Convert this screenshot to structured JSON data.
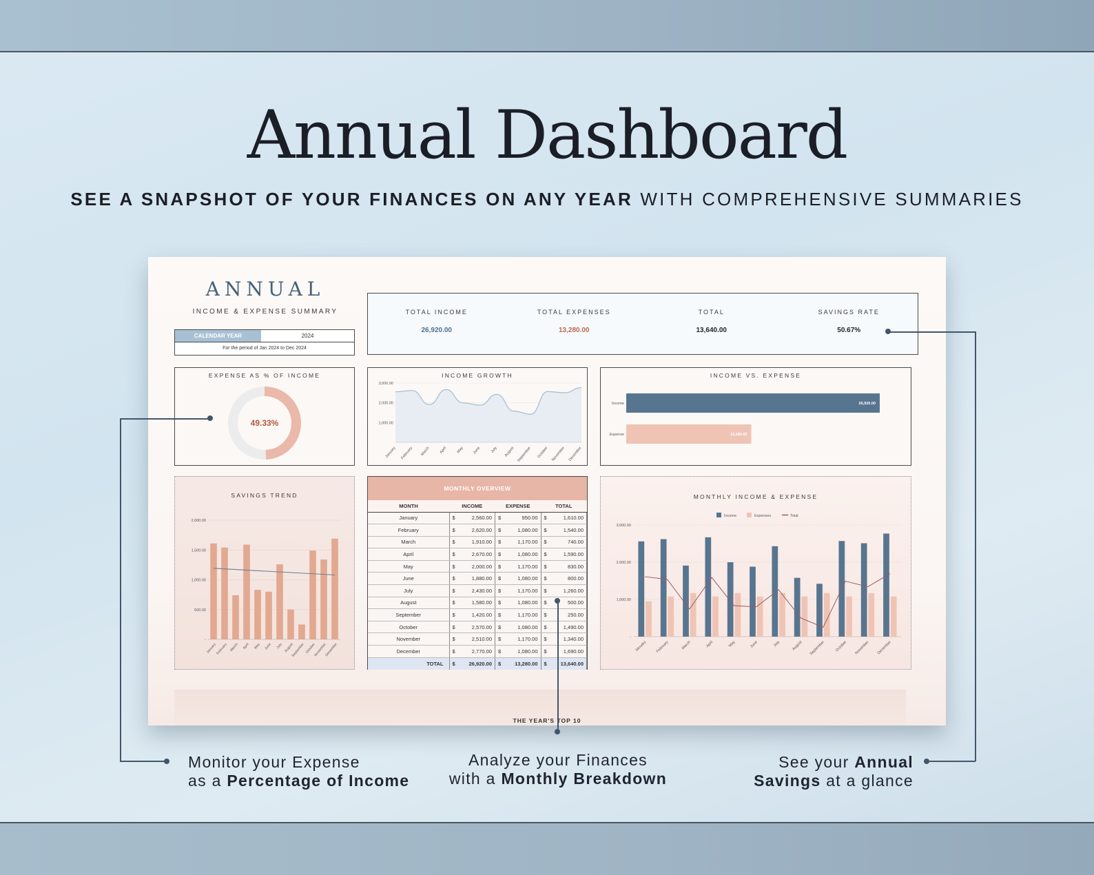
{
  "hero": {
    "title": "Annual Dashboard",
    "subtitle_bold": "SEE A SNAPSHOT OF YOUR FINANCES ON ANY YEAR",
    "subtitle_rest": "WITH COMPREHENSIVE SUMMARIES"
  },
  "header": {
    "title": "ANNUAL",
    "subtitle": "INCOME & EXPENSE SUMMARY",
    "calendar_label": "CALENDAR YEAR",
    "calendar_value": "2024",
    "period": "For the period of Jan 2024 to Dec 2024"
  },
  "kpis": [
    {
      "label": "TOTAL INCOME",
      "value": "26,920.00",
      "color": "#4f6f8c"
    },
    {
      "label": "TOTAL EXPENSES",
      "value": "13,280.00",
      "color": "#c0664f"
    },
    {
      "label": "TOTAL",
      "value": "13,640.00",
      "color": "#222222"
    },
    {
      "label": "SAVINGS RATE",
      "value": "50.67%",
      "color": "#222222"
    }
  ],
  "expense_pct": {
    "title": "EXPENSE AS % OF INCOME",
    "value_label": "49.33%",
    "value": 49.33
  },
  "months": [
    "January",
    "February",
    "March",
    "April",
    "May",
    "June",
    "July",
    "August",
    "September",
    "October",
    "November",
    "December"
  ],
  "income_growth": {
    "title": "INCOME GROWTH",
    "ticks": [
      "3,000.00",
      "2,000.00",
      "1,000.00"
    ]
  },
  "income_vs_expense": {
    "title": "INCOME VS. EXPENSE",
    "rows": [
      {
        "label": "Income",
        "value": 26920,
        "value_label": "26,920.00",
        "color": "#587590"
      },
      {
        "label": "Expense",
        "value": 13280,
        "value_label": "13,280.00",
        "color": "#efc4b5"
      }
    ]
  },
  "savings_trend": {
    "title": "SAVINGS TREND",
    "ticks": [
      "2,000.00",
      "1,500.00",
      "1,000.00",
      "500.00",
      "-"
    ]
  },
  "monthly_overview": {
    "title": "MONTHLY OVERVIEW",
    "headers": [
      "MONTH",
      "INCOME",
      "EXPENSE",
      "TOTAL"
    ],
    "currency": "$",
    "rows": [
      [
        "January",
        "2,560.00",
        "950.00",
        "1,610.00"
      ],
      [
        "February",
        "2,620.00",
        "1,080.00",
        "1,540.00"
      ],
      [
        "March",
        "1,910.00",
        "1,170.00",
        "740.00"
      ],
      [
        "April",
        "2,670.00",
        "1,080.00",
        "1,590.00"
      ],
      [
        "May",
        "2,000.00",
        "1,170.00",
        "830.00"
      ],
      [
        "June",
        "1,880.00",
        "1,080.00",
        "800.00"
      ],
      [
        "July",
        "2,430.00",
        "1,170.00",
        "1,260.00"
      ],
      [
        "August",
        "1,580.00",
        "1,080.00",
        "500.00"
      ],
      [
        "September",
        "1,420.00",
        "1,170.00",
        "250.00"
      ],
      [
        "October",
        "2,570.00",
        "1,080.00",
        "1,490.00"
      ],
      [
        "November",
        "2,510.00",
        "1,170.00",
        "1,340.00"
      ],
      [
        "December",
        "2,770.00",
        "1,080.00",
        "1,690.00"
      ]
    ],
    "total": [
      "TOTAL",
      "26,920.00",
      "13,280.00",
      "13,640.00"
    ]
  },
  "monthly_income_expense": {
    "title": "MONTHLY INCOME & EXPENSE",
    "legend": [
      "Income",
      "Expenses",
      "Total"
    ],
    "ticks": [
      "3,000.00",
      "2,000.00",
      "1,000.00",
      "-"
    ],
    "colors": {
      "income": "#587590",
      "expense": "#efc4b5",
      "total": "#9a5a62"
    }
  },
  "teaser": "THE YEAR'S TOP 10",
  "callouts": {
    "left_l1": "Monitor your Expense",
    "left_l2a": "as a ",
    "left_l2b": "Percentage of Income",
    "mid_l1": "Analyze your Finances",
    "mid_l2a": "with a ",
    "mid_l2b": "Monthly Breakdown",
    "right_l1a": "See your ",
    "right_l1b": "Annual",
    "right_l2a": "Savings",
    "right_l2b": " at a glance"
  },
  "chart_data": [
    {
      "type": "pie",
      "title": "EXPENSE AS % OF INCOME",
      "categories": [
        "Expense",
        "Remaining"
      ],
      "values": [
        49.33,
        50.67
      ]
    },
    {
      "type": "area",
      "title": "INCOME GROWTH",
      "categories": [
        "January",
        "February",
        "March",
        "April",
        "May",
        "June",
        "July",
        "August",
        "September",
        "October",
        "November",
        "December"
      ],
      "values": [
        2560,
        2620,
        1910,
        2670,
        2000,
        1880,
        2430,
        1580,
        1420,
        2570,
        2510,
        2770
      ],
      "ylim": [
        0,
        3000
      ]
    },
    {
      "type": "bar",
      "title": "INCOME VS. EXPENSE",
      "categories": [
        "Income",
        "Expense"
      ],
      "values": [
        26920,
        13280
      ]
    },
    {
      "type": "bar",
      "title": "SAVINGS TREND",
      "categories": [
        "January",
        "February",
        "March",
        "April",
        "May",
        "June",
        "July",
        "August",
        "September",
        "October",
        "November",
        "December"
      ],
      "values": [
        1610,
        1540,
        740,
        1590,
        830,
        800,
        1260,
        500,
        250,
        1490,
        1340,
        1690
      ],
      "ylim": [
        0,
        2000
      ]
    },
    {
      "type": "bar",
      "title": "MONTHLY INCOME & EXPENSE",
      "categories": [
        "January",
        "February",
        "March",
        "April",
        "May",
        "June",
        "July",
        "August",
        "September",
        "October",
        "November",
        "December"
      ],
      "series": [
        {
          "name": "Income",
          "values": [
            2560,
            2620,
            1910,
            2670,
            2000,
            1880,
            2430,
            1580,
            1420,
            2570,
            2510,
            2770
          ]
        },
        {
          "name": "Expenses",
          "values": [
            950,
            1080,
            1170,
            1080,
            1170,
            1080,
            1170,
            1080,
            1170,
            1080,
            1170,
            1080
          ]
        },
        {
          "name": "Total",
          "values": [
            1610,
            1540,
            740,
            1590,
            830,
            800,
            1260,
            500,
            250,
            1490,
            1340,
            1690
          ]
        }
      ],
      "ylim": [
        0,
        3000
      ]
    }
  ]
}
